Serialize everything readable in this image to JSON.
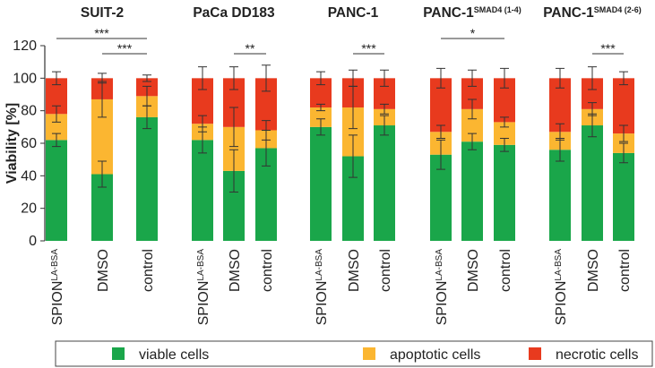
{
  "chart_data": {
    "type": "stacked_bar",
    "ylabel": "Viability [%]",
    "ylim": [
      0,
      120
    ],
    "yticks": [
      0,
      20,
      40,
      60,
      80,
      100,
      120
    ],
    "series": [
      {
        "name": "viable cells",
        "color": "#1aa64a"
      },
      {
        "name": "apoptotic cells",
        "color": "#fbb631"
      },
      {
        "name": "necrotic cells",
        "color": "#e83a1e"
      }
    ],
    "groups": [
      {
        "title": "SUIT-2",
        "title_superscript": null,
        "categories": [
          "SPION",
          "DMSO",
          "control"
        ],
        "category_superscripts": [
          "LA-BSA",
          null,
          null
        ],
        "values": [
          [
            62,
            16,
            22
          ],
          [
            41,
            46,
            13
          ],
          [
            76,
            13,
            11
          ]
        ],
        "errors": [
          [
            4,
            5,
            4
          ],
          [
            8,
            11,
            3
          ],
          [
            7,
            6,
            2
          ]
        ],
        "significance": [
          {
            "from": 0,
            "to": 2,
            "label": "***"
          },
          {
            "from": 1,
            "to": 2,
            "label": "***"
          }
        ]
      },
      {
        "title": "PaCa DD183",
        "title_superscript": null,
        "categories": [
          "SPION",
          "DMSO",
          "control"
        ],
        "category_superscripts": [
          "LA-BSA",
          null,
          null
        ],
        "values": [
          [
            62,
            10,
            28
          ],
          [
            43,
            27,
            30
          ],
          [
            57,
            11,
            32
          ]
        ],
        "errors": [
          [
            8,
            5,
            7
          ],
          [
            13,
            12,
            7
          ],
          [
            11,
            6,
            8
          ]
        ],
        "significance": [
          {
            "from": 1,
            "to": 2,
            "label": "**"
          }
        ]
      },
      {
        "title": "PANC-1",
        "title_superscript": null,
        "categories": [
          "SPION",
          "DMSO",
          "control"
        ],
        "category_superscripts": [
          "LA-BSA",
          null,
          null
        ],
        "values": [
          [
            70,
            12,
            18
          ],
          [
            52,
            30,
            18
          ],
          [
            71,
            10,
            19
          ]
        ],
        "errors": [
          [
            5,
            2,
            4
          ],
          [
            13,
            13,
            5
          ],
          [
            6,
            3,
            5
          ]
        ],
        "significance": [
          {
            "from": 1,
            "to": 2,
            "label": "***"
          }
        ]
      },
      {
        "title": "PANC-1",
        "title_superscript": "SMAD4 (1-4)",
        "categories": [
          "SPION",
          "DMSO",
          "control"
        ],
        "category_superscripts": [
          "LA-BSA",
          null,
          null
        ],
        "values": [
          [
            53,
            14,
            33
          ],
          [
            61,
            20,
            19
          ],
          [
            59,
            14,
            27
          ]
        ],
        "errors": [
          [
            9,
            4,
            6
          ],
          [
            5,
            6,
            5
          ],
          [
            4,
            3,
            6
          ]
        ],
        "significance": [
          {
            "from": 0,
            "to": 2,
            "label": "*"
          }
        ]
      },
      {
        "title": "PANC-1",
        "title_superscript": "SMAD4 (2-6)",
        "categories": [
          "SPION",
          "DMSO",
          "control"
        ],
        "category_superscripts": [
          "LA-BSA",
          null,
          null
        ],
        "values": [
          [
            56,
            11,
            33
          ],
          [
            71,
            10,
            19
          ],
          [
            54,
            12,
            34
          ]
        ],
        "errors": [
          [
            7,
            5,
            6
          ],
          [
            7,
            4,
            7
          ],
          [
            6,
            5,
            4
          ]
        ],
        "significance": [
          {
            "from": 1,
            "to": 2,
            "label": "***"
          }
        ]
      }
    ]
  }
}
